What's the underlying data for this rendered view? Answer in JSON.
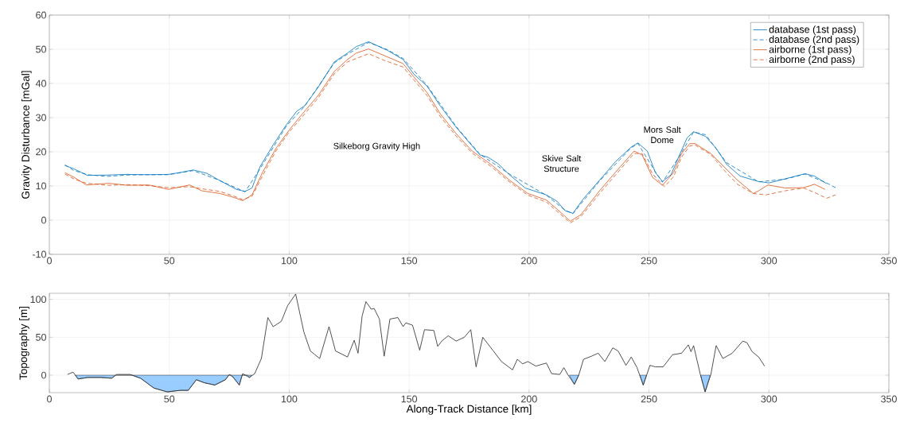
{
  "chart_data": [
    {
      "type": "line",
      "ylabel": "Gravity Disturbance [mGal]",
      "xlim": [
        0,
        350
      ],
      "xticks": [
        0,
        50,
        100,
        150,
        200,
        250,
        300,
        350
      ],
      "ylim": [
        -10,
        60
      ],
      "yticks": [
        -10,
        0,
        10,
        20,
        30,
        40,
        50,
        60
      ],
      "grid": true,
      "legend": "top right",
      "annotations": [
        "Silkeborg Gravity High",
        "Skive Salt Structure",
        "Mors Salt Dome"
      ],
      "series": [
        {
          "name": "database (1st pass)",
          "color": "#0072bd",
          "line_style": "solid",
          "x": [
            6.5,
            10,
            15.9,
            24,
            32.5,
            41,
            49.7,
            55,
            60,
            65.7,
            70,
            74.5,
            78,
            81.6,
            84.5,
            87.8,
            93.2,
            98.9,
            103.2,
            106.5,
            112,
            118.8,
            124.3,
            128,
            133.1,
            140.9,
            147.5,
            152,
            157.5,
            163,
            169.6,
            175.2,
            179.5,
            182.9,
            187.3,
            191.8,
            198.4,
            207.2,
            211.7,
            215,
            218.3,
            222.7,
            229.4,
            236,
            242.6,
            245.4,
            249.3,
            252.6,
            255.6,
            259.2,
            262.5,
            265.9,
            268.6,
            273.6,
            278,
            282.4,
            288,
            295.7,
            300.1,
            306.8,
            315.1,
            319,
            324
          ],
          "values": [
            16,
            15.1,
            13.1,
            13.2,
            13.4,
            13.3,
            13.4,
            14,
            14.7,
            13.7,
            12,
            10.3,
            9,
            8.4,
            9.4,
            15.6,
            21.9,
            28,
            31.9,
            33.5,
            38.8,
            46.3,
            48.9,
            50.8,
            52.2,
            49.7,
            47,
            42.7,
            39.2,
            33.4,
            27.2,
            22.6,
            19.1,
            18.4,
            16.4,
            13.3,
            9.4,
            7.4,
            5.5,
            2.8,
            2,
            6.3,
            11.7,
            17.1,
            21.4,
            22.6,
            20.2,
            14,
            11.3,
            13.3,
            18.7,
            24.1,
            25.9,
            24.5,
            21,
            16.3,
            12.9,
            11.3,
            10.9,
            12.1,
            13.6,
            12.9,
            10.7
          ]
        },
        {
          "name": "database (2nd pass)",
          "color": "#0072bd",
          "line_style": "dashed",
          "x": [
            6.5,
            10,
            15.9,
            24,
            32.5,
            41,
            49.7,
            60,
            70,
            81.6,
            87.8,
            98.9,
            106.5,
            118.8,
            124.3,
            133.1,
            140.9,
            147.5,
            157.5,
            169.6,
            179.5,
            191.8,
            207.2,
            215,
            218.3,
            229.4,
            242.6,
            245.4,
            252.6,
            255.6,
            262.5,
            268.6,
            273.6,
            282.4,
            295.7,
            306.8,
            315.1,
            324,
            327.8
          ],
          "values": [
            16.2,
            14.6,
            13.3,
            12.8,
            13.2,
            13.3,
            13.3,
            14.5,
            11.9,
            8.3,
            15,
            27.6,
            33.4,
            46,
            48.6,
            52,
            49.9,
            47.3,
            39.4,
            27.4,
            19.3,
            13.5,
            7.3,
            2.9,
            1.9,
            11.5,
            21.2,
            22.4,
            14.2,
            11.1,
            18.5,
            25.8,
            25,
            16.8,
            11.2,
            12,
            13.5,
            10.9,
            9.5
          ]
        },
        {
          "name": "airborne (1st pass)",
          "color": "#d95319",
          "line_style": "solid",
          "x": [
            6.5,
            10.4,
            15.4,
            24.8,
            32.5,
            41.4,
            49.7,
            58.5,
            63.5,
            71.2,
            76.7,
            80.6,
            84.5,
            88.9,
            94.5,
            100,
            105.5,
            112.1,
            118.8,
            124.3,
            128,
            133.1,
            139.8,
            147.5,
            152,
            157.5,
            163,
            169.6,
            176.3,
            184,
            191.8,
            199.5,
            207.2,
            211.7,
            217.2,
            221.6,
            229.4,
            236,
            243.8,
            247.1,
            251.5,
            255.6,
            260.3,
            263.6,
            267,
            269.2,
            275.8,
            281.3,
            286.9,
            293.5,
            295.7,
            299.6,
            306.8,
            314.5,
            319,
            323.4
          ],
          "values": [
            13.9,
            12.5,
            10.3,
            10.8,
            10.2,
            10.3,
            9,
            10.3,
            8.6,
            7.8,
            6.7,
            5.7,
            7.4,
            14,
            21,
            26.4,
            31.1,
            36.5,
            43.5,
            47,
            48.9,
            50.1,
            48.1,
            45.8,
            41.9,
            37.3,
            31.1,
            25.3,
            20.2,
            16.4,
            11.7,
            7.8,
            5.9,
            3.2,
            -0.3,
            1.6,
            8.6,
            14,
            20.2,
            19.1,
            12.5,
            10.2,
            14,
            19.5,
            22.4,
            22.4,
            19.5,
            15.6,
            11.7,
            7.8,
            8.6,
            10.3,
            9.4,
            9.5,
            10.5,
            9
          ]
        },
        {
          "name": "airborne (2nd pass)",
          "color": "#d95319",
          "line_style": "dashed",
          "x": [
            6.5,
            10.4,
            15.4,
            24.8,
            32.5,
            41.4,
            49.7,
            58.5,
            63.5,
            71.2,
            76.7,
            80.6,
            84.5,
            88.9,
            94.5,
            100,
            105.5,
            112.1,
            118.8,
            124.3,
            133.1,
            139.8,
            147.5,
            152,
            157.5,
            163,
            169.6,
            176.3,
            184,
            191.8,
            199.5,
            207.2,
            211.7,
            217.2,
            221.6,
            229.4,
            236,
            243.8,
            247.1,
            251.5,
            256.5,
            260.3,
            263.6,
            267,
            269.2,
            275.8,
            281.3,
            286.9,
            293.5,
            298.8,
            306.8,
            314.5,
            320,
            324,
            327.8
          ],
          "values": [
            13.5,
            12,
            10.8,
            10.2,
            10.4,
            10.1,
            9.5,
            9.8,
            9.2,
            8.4,
            7.1,
            6,
            7,
            13,
            20.3,
            25.8,
            30.3,
            35.8,
            42.8,
            46.3,
            48.7,
            46.7,
            44.8,
            41,
            36.4,
            30.3,
            24.6,
            19.6,
            15.8,
            11.2,
            7.3,
            5.3,
            2.6,
            -0.8,
            1,
            7.8,
            13.2,
            19.5,
            19.5,
            13.5,
            9.8,
            12.8,
            18.5,
            21.7,
            22,
            19.2,
            14.6,
            10.5,
            7.8,
            7.4,
            8.6,
            9.4,
            7.8,
            6.4,
            7.4
          ]
        }
      ]
    },
    {
      "type": "line",
      "xlabel": "Along-Track Distance [km]",
      "ylabel": "Topography [m]",
      "xlim": [
        0,
        350
      ],
      "xticks": [
        0,
        50,
        100,
        150,
        200,
        250,
        300,
        350
      ],
      "ylim": [
        -23,
        108
      ],
      "yticks": [
        0,
        50,
        100
      ],
      "grid": true,
      "series": [
        {
          "type": "area",
          "color": "#99ccff",
          "x": [
            10.8,
            12,
            16,
            21.5,
            26,
            27.5,
            34.5,
            38,
            43.6,
            49.1,
            54.6,
            57.9,
            61.3,
            64.6,
            69,
            73.4,
            74.8,
            75.8,
            76.7,
            79.2,
            80.3,
            82.5,
            83.4,
            84.5,
            null,
            216.8,
            218.9,
            220.7,
            null,
            246.2,
            247.6,
            249,
            null,
            271.5,
            273.4,
            275.5
          ],
          "values": [
            0,
            -5,
            -3,
            -3,
            -4,
            0,
            0,
            -4,
            -17,
            -22,
            -20,
            -20,
            -6,
            -10,
            -13,
            -6,
            0,
            0,
            -3,
            -13,
            0,
            0,
            -3,
            0,
            null,
            0,
            -12,
            0,
            null,
            0,
            -13,
            0,
            null,
            0,
            -22,
            0
          ]
        },
        {
          "color": "#262626",
          "x": [
            7.6,
            9.9,
            12,
            16,
            21.5,
            26,
            28.1,
            33.6,
            38,
            43.6,
            49.1,
            54.6,
            57.9,
            61.3,
            64.6,
            69,
            73.4,
            75.1,
            76.7,
            79.2,
            80.6,
            83.4,
            85.6,
            88.4,
            91.1,
            93.3,
            96.7,
            99.4,
            102.7,
            106.1,
            108.8,
            112.7,
            116.6,
            119.3,
            124.3,
            127.1,
            128.7,
            130.4,
            132,
            134.2,
            135.4,
            137.6,
            139.6,
            142,
            145.3,
            147.5,
            148.6,
            151.4,
            154.4,
            156.4,
            160.3,
            161.9,
            163.6,
            166.3,
            169.6,
            173,
            175.7,
            177.9,
            180.7,
            185.1,
            188.5,
            193.1,
            195.1,
            197.3,
            199.5,
            202.8,
            207.2,
            209.4,
            212.8,
            214.5,
            216.1,
            218.9,
            220.7,
            222.7,
            226,
            228.8,
            231.6,
            234.9,
            237.1,
            240.4,
            242.6,
            245,
            247.6,
            250.4,
            252.6,
            255.9,
            259.8,
            263.6,
            266.4,
            267.5,
            268.6,
            271.4,
            273.4,
            275.8,
            278,
            280.8,
            284.7,
            289.1,
            290.8,
            293,
            295.7,
            298.2
          ],
          "values": [
            1,
            4,
            -5,
            -3,
            -3,
            -4,
            1,
            1,
            -4,
            -17,
            -22,
            -20,
            -20,
            -6,
            -10,
            -13,
            -6,
            1,
            -3,
            -13,
            2,
            -3,
            2,
            22,
            76,
            64,
            71,
            92,
            107,
            57,
            32,
            22,
            64,
            32,
            24,
            46,
            29,
            78,
            97,
            87,
            88,
            74,
            25,
            74,
            76,
            64,
            69,
            66,
            33,
            60,
            59,
            38,
            45,
            52,
            45,
            50,
            60,
            11,
            50,
            32,
            18,
            7,
            21,
            15,
            18,
            12,
            16,
            2,
            1,
            10,
            1,
            -12,
            0,
            21,
            25,
            29,
            18,
            36,
            32,
            13,
            24,
            10,
            -13,
            13,
            11,
            11,
            27,
            29,
            40,
            31,
            39,
            1,
            -22,
            1,
            39,
            22,
            29,
            45,
            43,
            31,
            24,
            12
          ]
        }
      ]
    }
  ]
}
